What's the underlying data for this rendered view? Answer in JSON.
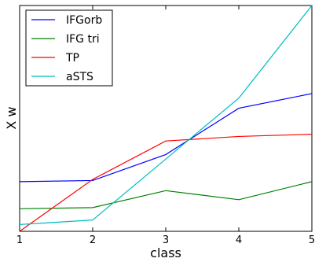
{
  "chart_data": {
    "type": "line",
    "title": "",
    "xlabel": "class",
    "ylabel": "X w",
    "x": [
      1,
      2,
      3,
      4,
      5
    ],
    "x_ticks": [
      "1",
      "2",
      "3",
      "4",
      "5"
    ],
    "xlim": [
      1,
      5
    ],
    "ylim": [
      0,
      1
    ],
    "y_ticks_visible": false,
    "grid": false,
    "legend_position": "top-left",
    "series": [
      {
        "name": "IFGorb",
        "color": "#0000ff",
        "values": [
          0.22,
          0.225,
          0.34,
          0.545,
          0.61
        ]
      },
      {
        "name": "IFG tri",
        "color": "#008000",
        "values": [
          0.1,
          0.105,
          0.18,
          0.14,
          0.22
        ]
      },
      {
        "name": "TP",
        "color": "#ff0000",
        "values": [
          0.0,
          0.23,
          0.4,
          0.42,
          0.43
        ]
      },
      {
        "name": "aSTS",
        "color": "#00bfbf",
        "values": [
          0.03,
          0.05,
          0.32,
          0.59,
          1.0
        ]
      }
    ]
  }
}
